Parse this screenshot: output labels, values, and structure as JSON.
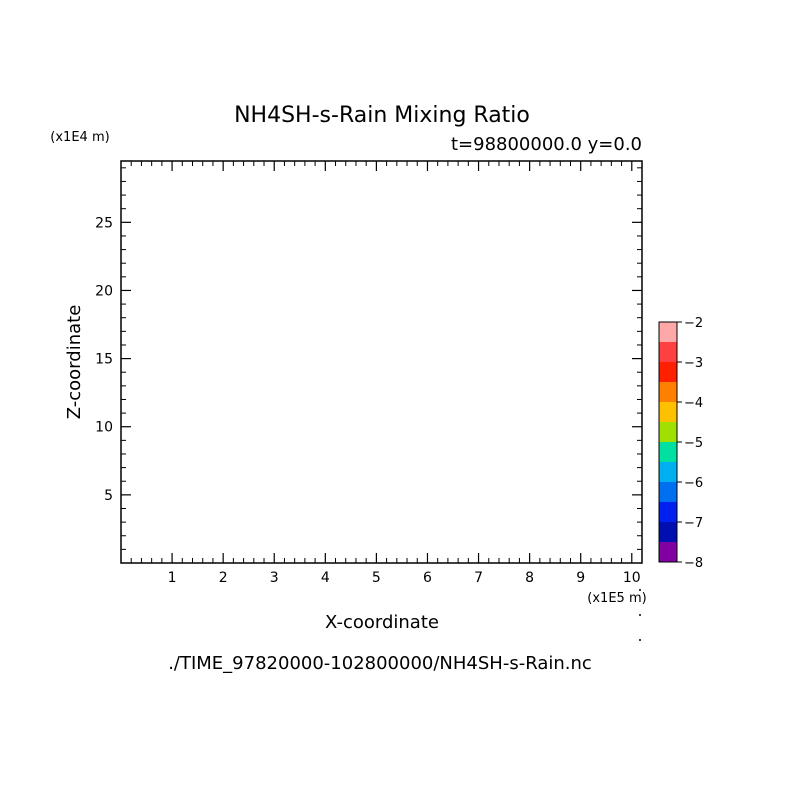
{
  "chart_data": {
    "type": "heatmap",
    "title": "NH4SH-s-Rain Mixing Ratio",
    "subtitle": "t=98800000.0 y=0.0",
    "xlabel": "X-coordinate",
    "ylabel": "Z-coordinate",
    "x_unit": "(x1E5 m)",
    "y_unit": "(x1E4 m)",
    "xlim": [
      0,
      10.2
    ],
    "ylim": [
      0,
      29.5
    ],
    "x_ticks": [
      1,
      2,
      3,
      4,
      5,
      6,
      7,
      8,
      9,
      10
    ],
    "y_ticks": [
      5,
      10,
      15,
      20,
      25
    ],
    "x_minor_step": 0.2,
    "y_minor_step": 1,
    "grid": false,
    "values": [],
    "colorbar": {
      "range": [
        -8,
        -2
      ],
      "labels": [
        -2,
        -3,
        -4,
        -5,
        -6,
        -7,
        -8
      ],
      "colors": [
        "#ffa8a8",
        "#ff4040",
        "#ff2000",
        "#ff8000",
        "#ffc000",
        "#a0e000",
        "#00e0a0",
        "#00b0f0",
        "#0070f0",
        "#0020f0",
        "#0010b0",
        "#8000a0"
      ]
    },
    "footer": "./TIME_97820000-102800000/NH4SH-s-Rain.nc"
  }
}
